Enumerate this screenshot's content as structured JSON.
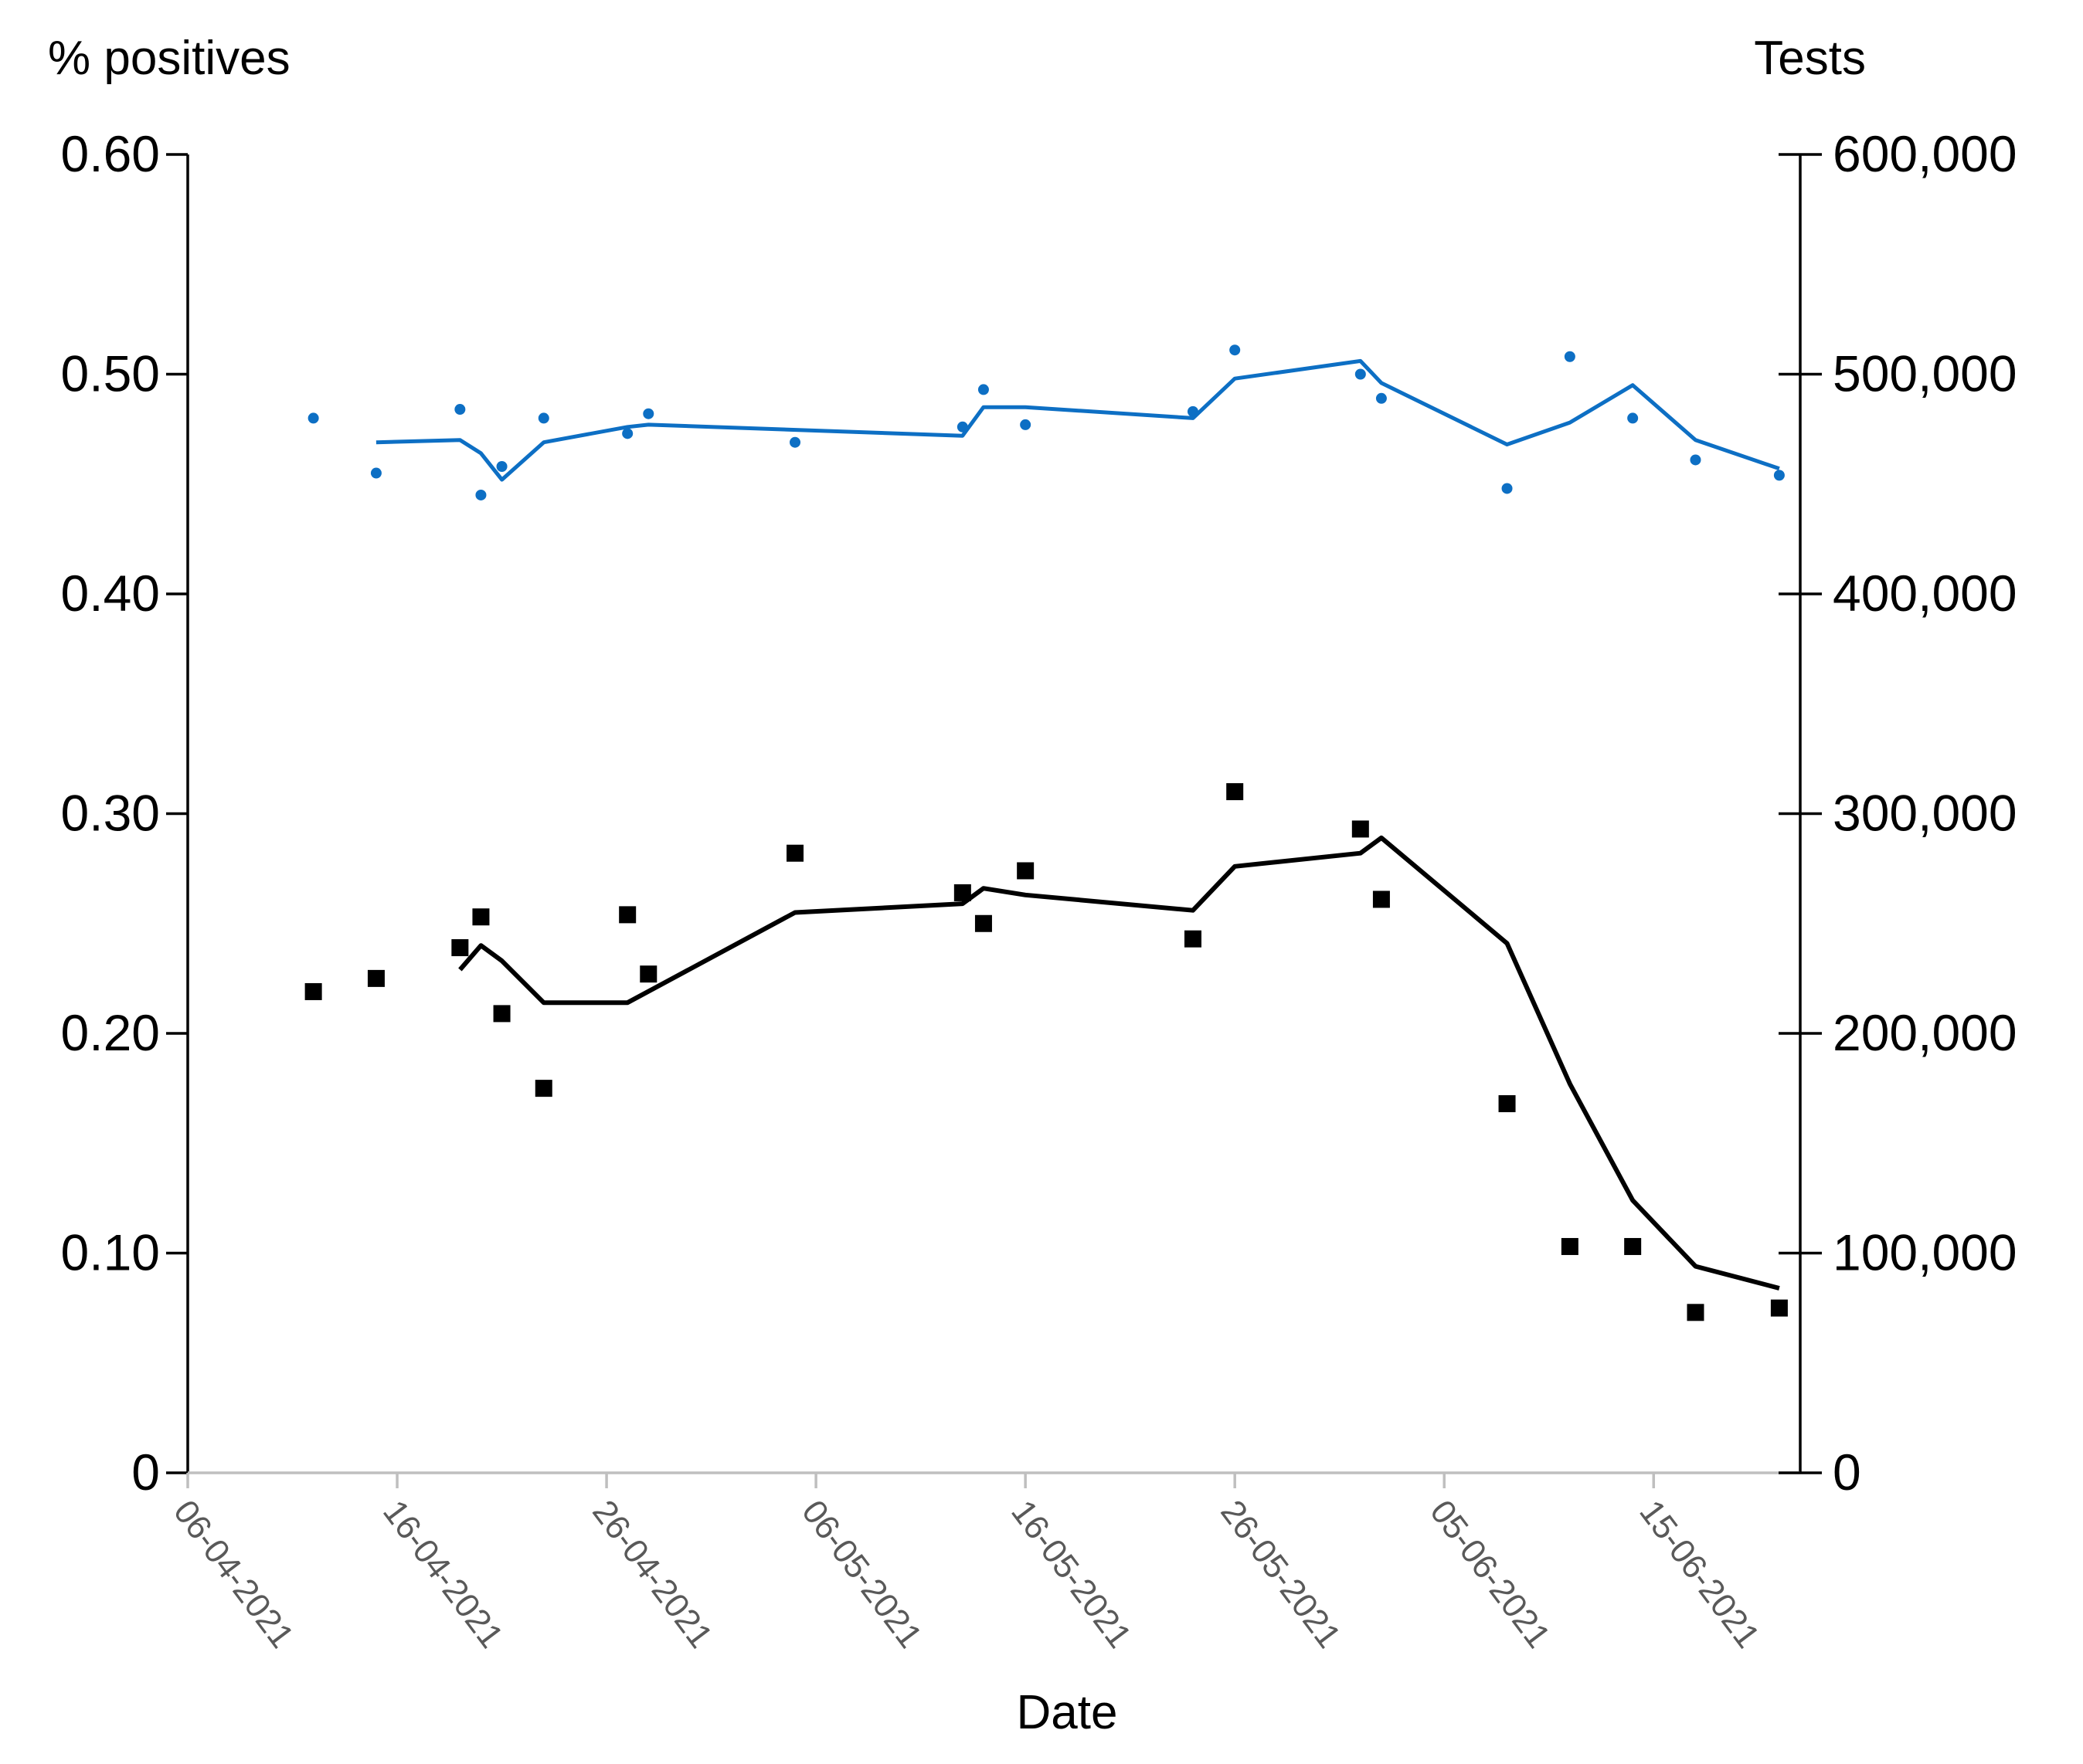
{
  "chart_data": {
    "type": "line",
    "xlabel": "Date",
    "ylabel_left": "% positives",
    "ylabel_right": "Tests",
    "x_ticks": [
      "06-04-2021",
      "16-04-2021",
      "26-04-2021",
      "06-05-2021",
      "16-05-2021",
      "26-05-2021",
      "05-06-2021",
      "15-06-2021"
    ],
    "xlim": [
      "2021-04-06",
      "2021-06-22"
    ],
    "ylim_left": [
      0,
      0.6
    ],
    "y_ticks_left": [
      "0",
      "0.10",
      "0.20",
      "0.30",
      "0.40",
      "0.50",
      "0.60"
    ],
    "ylim_right": [
      0,
      600000
    ],
    "y_ticks_right": [
      "0",
      "100,000",
      "200,000",
      "300,000",
      "400,000",
      "500,000",
      "600,000"
    ],
    "series": [
      {
        "name": "",
        "kind": "points",
        "axis": "left",
        "color": "#0d6fc4",
        "x": [
          "2021-04-12",
          "2021-04-15",
          "2021-04-19",
          "2021-04-20",
          "2021-04-21",
          "2021-04-23",
          "2021-04-27",
          "2021-04-28",
          "2021-05-05",
          "2021-05-13",
          "2021-05-14",
          "2021-05-16",
          "2021-05-24",
          "2021-05-26",
          "2021-06-01",
          "2021-06-02",
          "2021-06-08",
          "2021-06-11",
          "2021-06-14",
          "2021-06-17",
          "2021-06-21"
        ],
        "y": [
          0.48,
          0.455,
          0.484,
          0.445,
          0.458,
          0.48,
          0.473,
          0.482,
          0.469,
          0.476,
          0.493,
          0.477,
          0.483,
          0.511,
          0.5,
          0.489,
          0.448,
          0.508,
          0.48,
          0.461,
          0.454
        ]
      },
      {
        "name": "",
        "kind": "line",
        "axis": "left",
        "color": "#0d6fc4",
        "x": [
          "2021-04-15",
          "2021-04-19",
          "2021-04-20",
          "2021-04-21",
          "2021-04-23",
          "2021-04-27",
          "2021-04-28",
          "2021-05-13",
          "2021-05-14",
          "2021-05-16",
          "2021-05-24",
          "2021-05-26",
          "2021-06-01",
          "2021-06-02",
          "2021-06-08",
          "2021-06-11",
          "2021-06-14",
          "2021-06-17",
          "2021-06-21"
        ],
        "y": [
          0.469,
          0.47,
          0.464,
          0.452,
          0.469,
          0.476,
          0.477,
          0.472,
          0.485,
          0.485,
          0.48,
          0.498,
          0.506,
          0.496,
          0.468,
          0.478,
          0.495,
          0.47,
          0.457
        ]
      },
      {
        "name": "",
        "kind": "points",
        "axis": "right",
        "color": "#000000",
        "x": [
          "2021-04-12",
          "2021-04-15",
          "2021-04-19",
          "2021-04-20",
          "2021-04-21",
          "2021-04-23",
          "2021-04-27",
          "2021-04-28",
          "2021-05-05",
          "2021-05-13",
          "2021-05-14",
          "2021-05-16",
          "2021-05-24",
          "2021-05-26",
          "2021-06-01",
          "2021-06-02",
          "2021-06-08",
          "2021-06-11",
          "2021-06-14",
          "2021-06-17",
          "2021-06-21"
        ],
        "y": [
          219000,
          225000,
          239000,
          253000,
          209000,
          175000,
          254000,
          227000,
          282000,
          264000,
          250000,
          274000,
          243000,
          310000,
          293000,
          261000,
          168000,
          103000,
          103000,
          73000,
          75000
        ]
      },
      {
        "name": "",
        "kind": "line",
        "axis": "right",
        "color": "#000000",
        "x": [
          "2021-04-19",
          "2021-04-20",
          "2021-04-21",
          "2021-04-23",
          "2021-04-27",
          "2021-05-05",
          "2021-05-13",
          "2021-05-14",
          "2021-05-16",
          "2021-05-24",
          "2021-05-26",
          "2021-06-01",
          "2021-06-02",
          "2021-06-08",
          "2021-06-11",
          "2021-06-14",
          "2021-06-17",
          "2021-06-21"
        ],
        "y": [
          229000,
          240000,
          233000,
          214000,
          214000,
          255000,
          259000,
          266000,
          263000,
          256000,
          276000,
          282000,
          289000,
          241000,
          177000,
          124000,
          94000,
          84000
        ]
      }
    ]
  }
}
